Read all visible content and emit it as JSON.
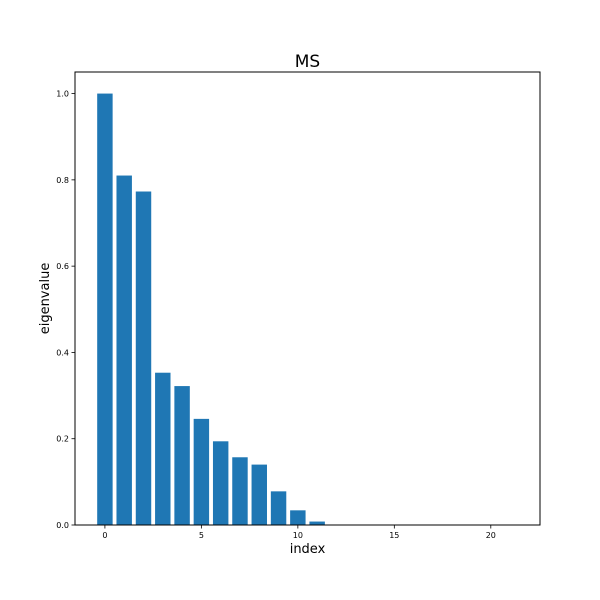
{
  "chart_data": {
    "type": "bar",
    "title": "MS",
    "xlabel": "index",
    "ylabel": "eigenvalue",
    "x": [
      0,
      1,
      2,
      3,
      4,
      5,
      6,
      7,
      8,
      9,
      10,
      11,
      12,
      13,
      14,
      15,
      16,
      17,
      18,
      19,
      20,
      21
    ],
    "values": [
      1.0,
      0.81,
      0.773,
      0.353,
      0.322,
      0.246,
      0.194,
      0.157,
      0.14,
      0.078,
      0.034,
      0.008,
      0,
      0,
      0,
      0,
      0,
      0,
      0,
      0,
      0,
      0
    ],
    "xlim": [
      -1.55,
      22.55
    ],
    "ylim": [
      0,
      1.05
    ],
    "xticks": [
      0,
      5,
      10,
      15,
      20
    ],
    "xtick_labels": [
      "0",
      "5",
      "10",
      "15",
      "20"
    ],
    "yticks": [
      0.0,
      0.2,
      0.4,
      0.6,
      0.8,
      1.0
    ],
    "ytick_labels": [
      "0.0",
      "0.2",
      "0.4",
      "0.6",
      "0.8",
      "1.0"
    ],
    "bar_color": "#1f77b4",
    "grid": false,
    "legend": "none"
  }
}
